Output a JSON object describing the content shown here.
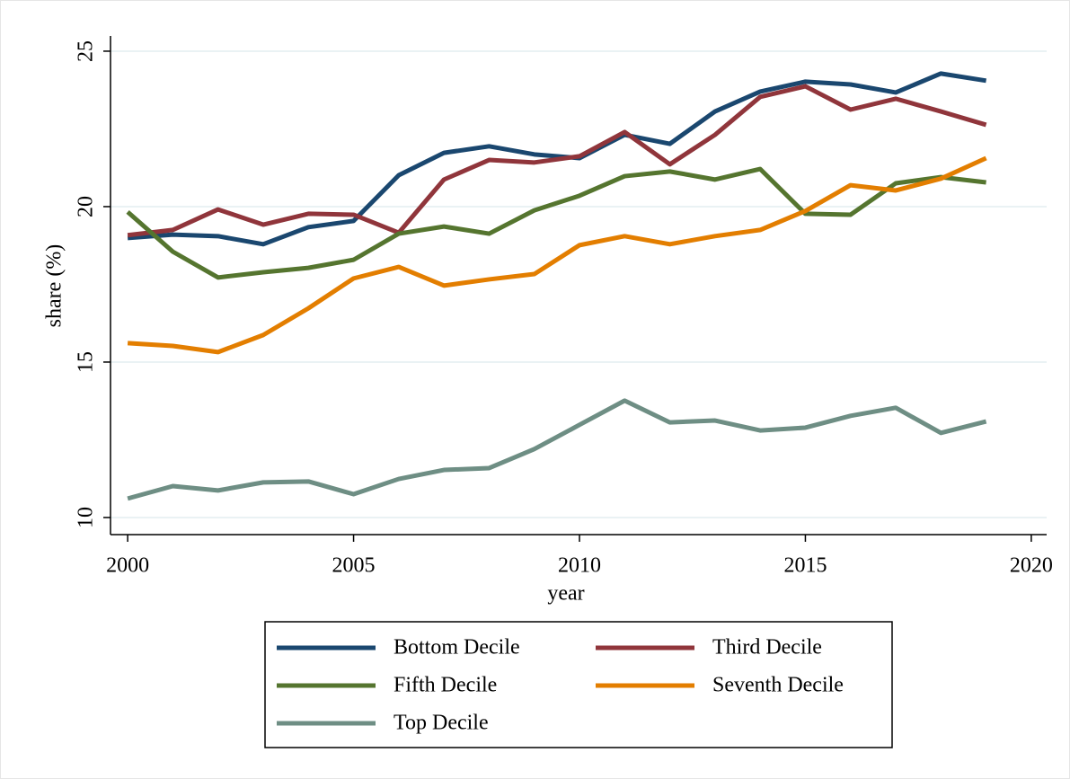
{
  "chart_data": {
    "type": "line",
    "x_label": "year",
    "y_label": "share (%)",
    "x": [
      2000,
      2001,
      2002,
      2003,
      2004,
      2005,
      2006,
      2007,
      2008,
      2009,
      2010,
      2011,
      2012,
      2013,
      2014,
      2015,
      2016,
      2017,
      2018,
      2019
    ],
    "series": [
      {
        "name": "Bottom Decile",
        "color": "#1a476f",
        "values": [
          18.99,
          19.1,
          19.05,
          18.79,
          19.34,
          19.54,
          21.01,
          21.73,
          21.94,
          21.68,
          21.56,
          22.31,
          22.02,
          23.06,
          23.7,
          24.02,
          23.93,
          23.67,
          24.28,
          24.05
        ]
      },
      {
        "name": "Third Decile",
        "color": "#90353b",
        "values": [
          19.08,
          19.25,
          19.91,
          19.42,
          19.77,
          19.74,
          19.16,
          20.87,
          21.5,
          21.42,
          21.62,
          22.4,
          21.36,
          22.31,
          23.53,
          23.87,
          23.12,
          23.47,
          23.06,
          22.63
        ]
      },
      {
        "name": "Fifth Decile",
        "color": "#55752f",
        "values": [
          19.83,
          18.55,
          17.72,
          17.89,
          18.03,
          18.29,
          19.13,
          19.36,
          19.13,
          19.88,
          20.35,
          20.98,
          21.13,
          20.87,
          21.21,
          19.77,
          19.74,
          20.75,
          20.95,
          20.78
        ]
      },
      {
        "name": "Seventh Decile",
        "color": "#e37e00",
        "values": [
          15.61,
          15.52,
          15.32,
          15.87,
          16.73,
          17.69,
          18.06,
          17.46,
          17.66,
          17.83,
          18.76,
          19.05,
          18.79,
          19.05,
          19.25,
          19.86,
          20.69,
          20.52,
          20.9,
          21.56
        ]
      },
      {
        "name": "Top Decile",
        "color": "#6e8e84",
        "values": [
          10.61,
          11.01,
          10.87,
          11.13,
          11.16,
          10.75,
          11.24,
          11.53,
          11.59,
          12.2,
          12.98,
          13.76,
          13.06,
          13.12,
          12.8,
          12.89,
          13.27,
          13.53,
          12.72,
          13.09
        ]
      }
    ],
    "xlim": [
      1999.62,
      2020.34
    ],
    "ylim": [
      9.45,
      25.49
    ],
    "xticks": [
      2000,
      2005,
      2010,
      2015,
      2020
    ],
    "yticks": [
      10,
      15,
      20,
      25
    ],
    "grid": true,
    "legend_position": "bottom"
  }
}
